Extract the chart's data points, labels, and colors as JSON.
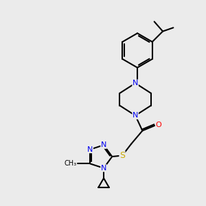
{
  "bg_color": "#ebebeb",
  "atom_colors": {
    "C": "#000000",
    "N": "#0000ee",
    "O": "#ff0000",
    "S": "#ccaa00"
  },
  "bond_color": "#000000",
  "font_size": 8.0,
  "figsize": [
    3.0,
    3.0
  ],
  "dpi": 100,
  "xlim": [
    0,
    10
  ],
  "ylim": [
    0,
    10
  ]
}
